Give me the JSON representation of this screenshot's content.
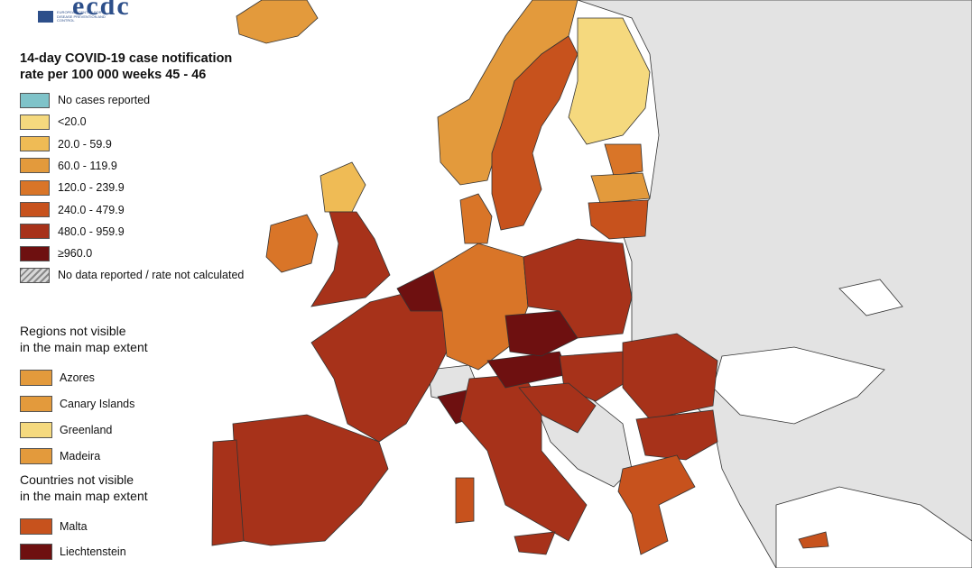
{
  "logo": {
    "text": "ecdc",
    "org_line": "EUROPEAN CENTRE FOR DISEASE PREVENTION AND CONTROL"
  },
  "legend": {
    "title_line1": "14-day COVID-19 case notification",
    "title_line2": "rate per 100 000 weeks 45 - 46",
    "classes": [
      {
        "label": "No cases reported",
        "color": "#7fc3c9"
      },
      {
        "label": "<20.0",
        "color": "#f5d97e"
      },
      {
        "label": "20.0 - 59.9",
        "color": "#efbb55"
      },
      {
        "label": "60.0 - 119.9",
        "color": "#e39a3c"
      },
      {
        "label": "120.0 - 239.9",
        "color": "#d97528"
      },
      {
        "label": "240.0 - 479.9",
        "color": "#c7521d"
      },
      {
        "label": "480.0 - 959.9",
        "color": "#a7321a"
      },
      {
        "label": "≥960.0",
        "color": "#6e1010"
      },
      {
        "label": "No data reported / rate not calculated",
        "color": "hatched"
      }
    ],
    "regions_heading_line1": "Regions not visible",
    "regions_heading_line2": "in the main map extent",
    "regions": [
      {
        "label": "Azores",
        "color": "#e39a3c"
      },
      {
        "label": "Canary Islands",
        "color": "#e39a3c"
      },
      {
        "label": "Greenland",
        "color": "#f5d97e"
      },
      {
        "label": "Madeira",
        "color": "#e39a3c"
      }
    ],
    "countries_heading_line1": "Countries not visible",
    "countries_heading_line2": "in the main map extent",
    "countries": [
      {
        "label": "Malta",
        "color": "#c7521d"
      },
      {
        "label": "Liechtenstein",
        "color": "#6e1010"
      }
    ]
  },
  "colors": {
    "sea": "#ffffff",
    "non_eu_land": "#e3e3e3",
    "border": "#333333"
  }
}
